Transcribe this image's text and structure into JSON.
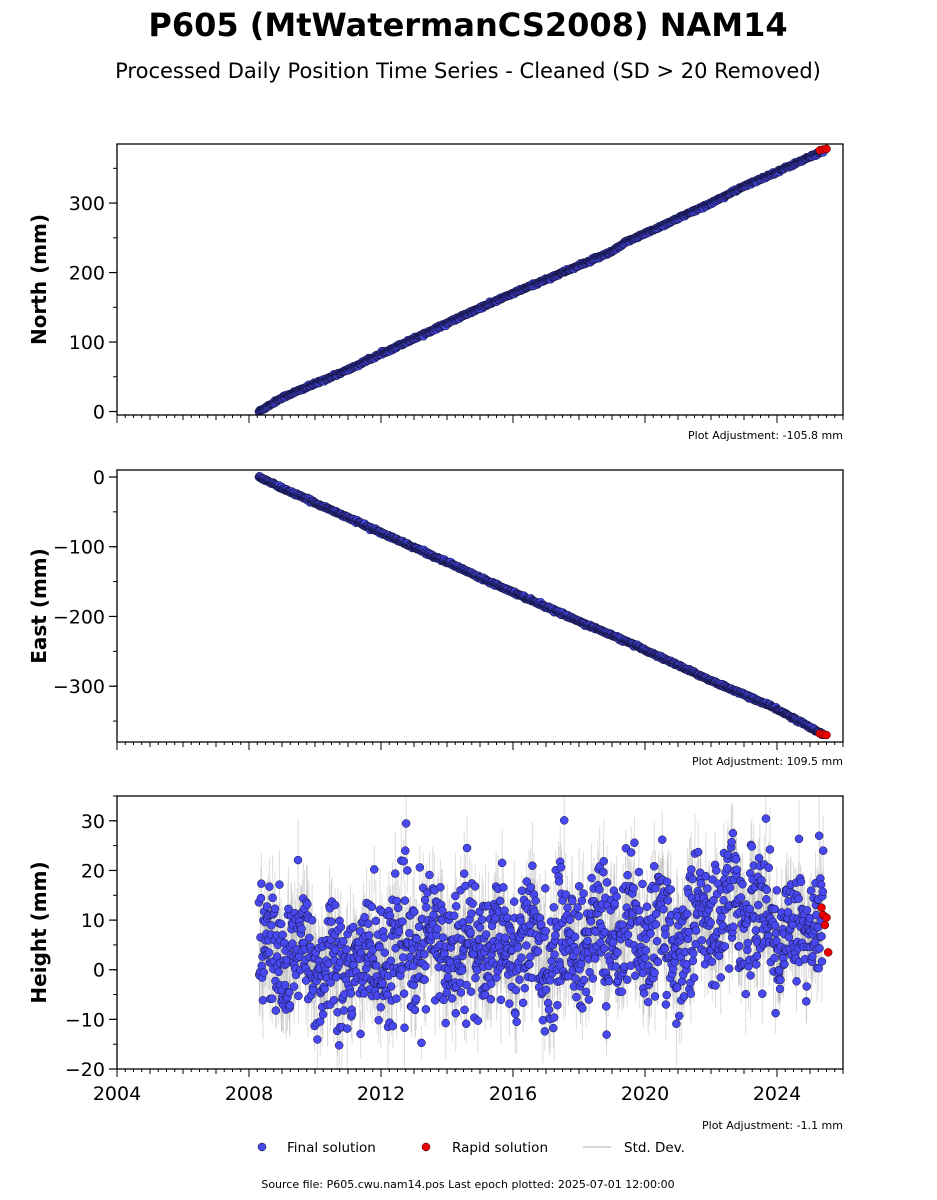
{
  "figure": {
    "title": "P605 (MtWatermanCS2008) NAM14",
    "subtitle": "Processed Daily Position Time Series - Cleaned (SD > 20 Removed)",
    "footer": "Source file: P605.cwu.nam14.pos  Last epoch plotted: 2025-07-01 12:00:00",
    "colors": {
      "final": "#4848f0",
      "rapid": "#ee0000",
      "std": "#9a9a9a"
    }
  },
  "legend": {
    "placement": "bottom-center",
    "items": [
      {
        "label": "Final solution",
        "color": "#4848f0",
        "kind": "dot"
      },
      {
        "label": "Rapid solution",
        "color": "#ee0000",
        "kind": "dot"
      },
      {
        "label": "Std. Dev.",
        "color": "#cccccc",
        "kind": "line"
      }
    ]
  },
  "chart_data": [
    {
      "type": "scatter",
      "ylabel": "North (mm)",
      "adjustment": "Plot Adjustment: -105.8 mm",
      "xlim": [
        2004.0,
        2026.0
      ],
      "ylim": [
        -5,
        385
      ],
      "yticks": [
        0,
        100,
        200,
        300
      ],
      "ytick_labels": [
        "0",
        "100",
        "200",
        "300"
      ],
      "xticks": [
        2004,
        2008,
        2012,
        2016,
        2020,
        2024
      ],
      "xtick_labels": [],
      "x": [
        2008.3,
        2009.0,
        2010.0,
        2011.0,
        2012.0,
        2013.0,
        2014.0,
        2015.0,
        2016.0,
        2017.0,
        2018.0,
        2019.0,
        2019.5,
        2020.0,
        2021.0,
        2022.0,
        2023.0,
        2024.0,
        2025.4
      ],
      "series": [
        {
          "name": "Final solution",
          "values": [
            0,
            20,
            40,
            60,
            83,
            105,
            127,
            149,
            170,
            190,
            210,
            230,
            246,
            256,
            278,
            300,
            324,
            345,
            375
          ]
        },
        {
          "name": "Rapid solution",
          "x": [
            2025.3,
            2025.4,
            2025.5
          ],
          "values": [
            376,
            377,
            378
          ]
        }
      ],
      "std_range": [
        1.5,
        4
      ]
    },
    {
      "type": "scatter",
      "ylabel": "East (mm)",
      "adjustment": "Plot Adjustment: 109.5 mm",
      "xlim": [
        2004.0,
        2026.0
      ],
      "ylim": [
        -380,
        10
      ],
      "yticks": [
        0,
        -100,
        -200,
        -300
      ],
      "ytick_labels": [
        "0",
        "−100",
        "−200",
        "−300"
      ],
      "xticks": [
        2004,
        2008,
        2012,
        2016,
        2020,
        2024
      ],
      "xtick_labels": [],
      "x": [
        2008.3,
        2009.0,
        2010.0,
        2011.0,
        2012.0,
        2013.0,
        2014.0,
        2015.0,
        2016.0,
        2017.0,
        2018.0,
        2019.0,
        2020.0,
        2021.0,
        2022.0,
        2023.0,
        2024.0,
        2025.4
      ],
      "series": [
        {
          "name": "Final solution",
          "values": [
            0,
            -16,
            -37,
            -58,
            -80,
            -101,
            -122,
            -144,
            -165,
            -186,
            -207,
            -227,
            -248,
            -270,
            -292,
            -312,
            -333,
            -369
          ]
        },
        {
          "name": "Rapid solution",
          "x": [
            2025.3,
            2025.4,
            2025.5
          ],
          "values": [
            -368,
            -369,
            -370
          ]
        }
      ],
      "std_range": [
        1.5,
        4
      ]
    },
    {
      "type": "scatter",
      "ylabel": "Height (mm)",
      "adjustment": "Plot Adjustment: -1.1 mm",
      "xlim": [
        2004.0,
        2026.0
      ],
      "ylim": [
        -20,
        35
      ],
      "yticks": [
        -20,
        -10,
        0,
        10,
        20,
        30
      ],
      "ytick_labels": [
        "−20",
        "−10",
        "0",
        "10",
        "20",
        "30"
      ],
      "xticks": [
        2004,
        2008,
        2012,
        2016,
        2020,
        2024
      ],
      "xtick_labels": [
        "2004",
        "2008",
        "2012",
        "2016",
        "2020",
        "2024"
      ],
      "x": [
        2008.3,
        2009.0,
        2010.0,
        2011.0,
        2012.0,
        2013.0,
        2014.0,
        2015.0,
        2016.0,
        2017.0,
        2018.0,
        2019.0,
        2020.0,
        2021.0,
        2022.0,
        2023.0,
        2024.0,
        2025.4
      ],
      "series": [
        {
          "name": "Final solution",
          "values": [
            2,
            3,
            2,
            0,
            3,
            4,
            5,
            5,
            6,
            4,
            6,
            8,
            8,
            6,
            11,
            13,
            8,
            10
          ],
          "scatter": 6.5
        },
        {
          "name": "Rapid solution",
          "x": [
            2025.35,
            2025.4,
            2025.45,
            2025.5,
            2025.55
          ],
          "values": [
            12.5,
            11,
            9,
            10.5,
            3.5
          ]
        }
      ],
      "std_range": [
        3,
        9
      ]
    }
  ]
}
